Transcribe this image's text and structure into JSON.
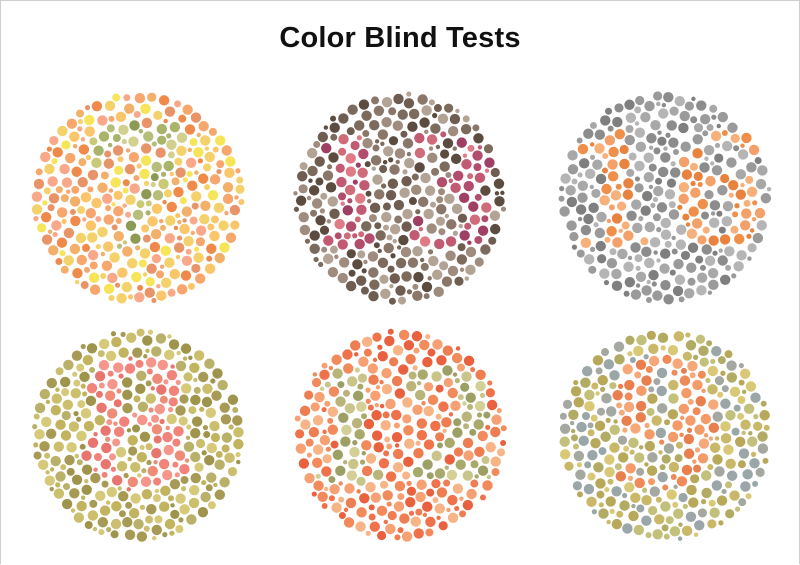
{
  "title": "Color Blind Tests",
  "plates": [
    {
      "number": "7",
      "background_colors": [
        "#f08a4b",
        "#f7a76e",
        "#f2b06b",
        "#fbc56a",
        "#f9a98a",
        "#f4d16a",
        "#f6e558",
        "#e99468"
      ],
      "figure_colors": [
        "#c9c978",
        "#a9b46a",
        "#8d9a54",
        "#b7be7c",
        "#d2d08f"
      ]
    },
    {
      "number": "13",
      "background_colors": [
        "#6e5d50",
        "#8a776a",
        "#9f8c7e",
        "#5c4c40",
        "#b3a394",
        "#7c6a5c"
      ],
      "figure_colors": [
        "#b24d6c",
        "#d06b7a",
        "#9e3f63",
        "#e07b86",
        "#c25a72"
      ]
    },
    {
      "number": "16",
      "background_colors": [
        "#9a9a9a",
        "#a8a8a8",
        "#8c8c8c",
        "#b5b5b5",
        "#7f7f7f"
      ],
      "figure_colors": [
        "#f08f4a",
        "#f4a06a",
        "#e8823f",
        "#f7b07a"
      ]
    },
    {
      "number": "8",
      "background_colors": [
        "#b9b06a",
        "#a69a54",
        "#cbbf6e",
        "#d6c979",
        "#9f944c",
        "#c2b45f"
      ],
      "figure_colors": [
        "#f1837a",
        "#e9756f",
        "#f6968a",
        "#ee8c78"
      ]
    },
    {
      "number": "12",
      "background_colors": [
        "#f0724a",
        "#f28a5c",
        "#f6a073",
        "#e9613f",
        "#f7b487",
        "#ee7d52"
      ],
      "figure_colors": [
        "#b9b47a",
        "#a8aa6c",
        "#c8c48a",
        "#9da064",
        "#d4cf95"
      ]
    },
    {
      "number": "9",
      "background_colors": [
        "#c9b868",
        "#b8a85a",
        "#d9c977",
        "#a4a8a0",
        "#9aa6a8",
        "#c2c07a",
        "#b1ab64"
      ],
      "figure_colors": [
        "#f08a58",
        "#f49b6a",
        "#e97f4f",
        "#f6a878"
      ]
    }
  ]
}
